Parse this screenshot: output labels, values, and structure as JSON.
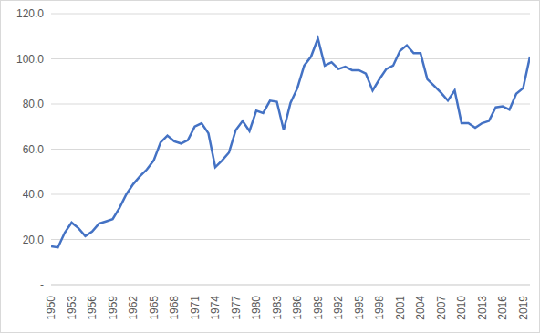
{
  "chart_data": {
    "type": "line",
    "x": [
      1950,
      1951,
      1952,
      1953,
      1954,
      1955,
      1956,
      1957,
      1958,
      1959,
      1960,
      1961,
      1962,
      1963,
      1964,
      1965,
      1966,
      1967,
      1968,
      1969,
      1970,
      1971,
      1972,
      1973,
      1974,
      1975,
      1976,
      1977,
      1978,
      1979,
      1980,
      1981,
      1982,
      1983,
      1984,
      1985,
      1986,
      1987,
      1988,
      1989,
      1990,
      1991,
      1992,
      1993,
      1994,
      1995,
      1996,
      1997,
      1998,
      1999,
      2000,
      2001,
      2002,
      2003,
      2004,
      2005,
      2006,
      2007,
      2008,
      2009,
      2010,
      2011,
      2012,
      2013,
      2014,
      2015,
      2016,
      2017,
      2018,
      2019,
      2020
    ],
    "values": [
      17.0,
      16.5,
      23.0,
      27.5,
      25.0,
      21.5,
      23.5,
      27.0,
      28.0,
      29.0,
      34.0,
      40.0,
      44.5,
      48.0,
      51.0,
      55.0,
      63.0,
      66.0,
      63.5,
      62.5,
      64.0,
      70.0,
      71.5,
      67.0,
      52.0,
      55.0,
      58.5,
      68.5,
      72.5,
      68.0,
      77.0,
      76.0,
      81.5,
      81.0,
      68.5,
      80.5,
      87.0,
      97.0,
      101.0,
      109.0,
      97.0,
      98.5,
      95.5,
      96.5,
      95.0,
      95.0,
      93.5,
      86.0,
      91.0,
      95.5,
      97.0,
      103.5,
      106.0,
      102.5,
      102.5,
      91.0,
      88.0,
      85.0,
      81.5,
      86.0,
      71.5,
      71.5,
      69.5,
      71.5,
      72.5,
      78.5,
      79.0,
      77.5,
      84.5,
      87.0,
      101.0
    ],
    "color": "#4472c4",
    "xlim": [
      1950,
      2020
    ],
    "xticks": [
      1950,
      1953,
      1956,
      1959,
      1962,
      1965,
      1968,
      1971,
      1974,
      1977,
      1980,
      1983,
      1986,
      1989,
      1992,
      1995,
      1998,
      2001,
      2004,
      2007,
      2010,
      2013,
      2016,
      2019
    ],
    "ylim": [
      0,
      120
    ],
    "yticks": [
      {
        "value": 0,
        "label": "-"
      },
      {
        "value": 20,
        "label": "20.0"
      },
      {
        "value": 40,
        "label": "40.0"
      },
      {
        "value": 60,
        "label": "60.0"
      },
      {
        "value": 80,
        "label": "80.0"
      },
      {
        "value": 100,
        "label": "100.0"
      },
      {
        "value": 120,
        "label": "120.0"
      }
    ],
    "grid": true
  }
}
